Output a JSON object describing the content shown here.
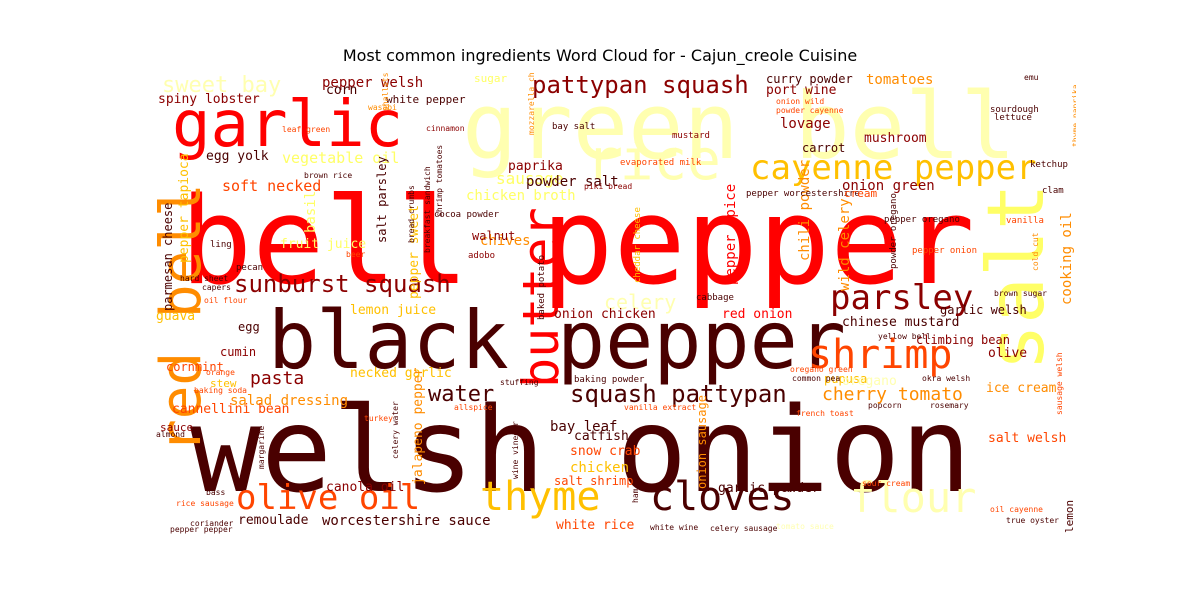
{
  "title": "Most common ingredients Word Cloud for - Cajun_creole Cuisine",
  "palette": {
    "dark": "#4a0000",
    "deep_red": "#8b0000",
    "red": "#ff0000",
    "orange_red": "#ff4500",
    "orange": "#ff8c00",
    "gold": "#ffc000",
    "yellow": "#ffff66",
    "pale_yellow": "#ffffb0",
    "background": "#ffffff"
  },
  "words": [
    {
      "text": "welsh onion"
    },
    {
      "text": "bell pepper"
    },
    {
      "text": "black pepper"
    },
    {
      "text": "green bell"
    },
    {
      "text": "garlic"
    },
    {
      "text": "salt"
    },
    {
      "text": "red bell"
    },
    {
      "text": "butter"
    },
    {
      "text": "rice"
    },
    {
      "text": "cayenne pepper"
    },
    {
      "text": "shrimp"
    },
    {
      "text": "parsley"
    },
    {
      "text": "thyme"
    },
    {
      "text": "cloves"
    },
    {
      "text": "olive oil"
    },
    {
      "text": "flour"
    },
    {
      "text": "sunburst squash"
    },
    {
      "text": "squash pattypan"
    },
    {
      "text": "pattypan squash"
    },
    {
      "text": "sweet bay"
    },
    {
      "text": "pasta"
    },
    {
      "text": "water"
    },
    {
      "text": "cherry tomato"
    },
    {
      "text": "celery"
    },
    {
      "text": "sausage"
    },
    {
      "text": "soft necked"
    },
    {
      "text": "vegetable oil"
    },
    {
      "text": "chicken broth"
    },
    {
      "text": "pepper welsh"
    },
    {
      "text": "corn"
    },
    {
      "text": "spiny lobster"
    },
    {
      "text": "white pepper"
    },
    {
      "text": "egg yolk"
    },
    {
      "text": "paprika"
    },
    {
      "text": "powder salt"
    },
    {
      "text": "onion green"
    },
    {
      "text": "curry powder"
    },
    {
      "text": "port wine"
    },
    {
      "text": "lovage"
    },
    {
      "text": "carrot"
    },
    {
      "text": "mushroom"
    },
    {
      "text": "tomatoes"
    },
    {
      "text": "sugar"
    },
    {
      "text": "fruit juice"
    },
    {
      "text": "basil"
    },
    {
      "text": "salt parsley"
    },
    {
      "text": "chives"
    },
    {
      "text": "walnut"
    },
    {
      "text": "pepper spice"
    },
    {
      "text": "chili powder"
    },
    {
      "text": "wild celery"
    },
    {
      "text": "cooking oil"
    },
    {
      "text": "garlic welsh"
    },
    {
      "text": "lemon juice"
    },
    {
      "text": "onion chicken"
    },
    {
      "text": "red onion"
    },
    {
      "text": "chinese mustard"
    },
    {
      "text": "climbing bean"
    },
    {
      "text": "olive"
    },
    {
      "text": "pupusa"
    },
    {
      "text": "oregano"
    },
    {
      "text": "ice cream"
    },
    {
      "text": "guava"
    },
    {
      "text": "egg"
    },
    {
      "text": "cumin"
    },
    {
      "text": "cornmint"
    },
    {
      "text": "stew"
    },
    {
      "text": "necked garlic"
    },
    {
      "text": "salad dressing"
    },
    {
      "text": "cannellini bean"
    },
    {
      "text": "bay leaf"
    },
    {
      "text": "catfish"
    },
    {
      "text": "snow crab"
    },
    {
      "text": "chicken"
    },
    {
      "text": "salt shrimp"
    },
    {
      "text": "canola oil"
    },
    {
      "text": "garlic powder"
    },
    {
      "text": "remoulade"
    },
    {
      "text": "worcestershire sauce"
    },
    {
      "text": "white rice"
    },
    {
      "text": "salt welsh"
    },
    {
      "text": "lemon"
    },
    {
      "text": "parmesan cheese"
    },
    {
      "text": "pepper tapioca"
    },
    {
      "text": "pepper sweet"
    },
    {
      "text": "cheddar cheese"
    },
    {
      "text": "jalapeno pepper"
    },
    {
      "text": "onion sausage"
    },
    {
      "text": "sauce"
    },
    {
      "text": "ketchup"
    },
    {
      "text": "clam"
    },
    {
      "text": "vanilla"
    },
    {
      "text": "sourdough"
    },
    {
      "text": "lettuce"
    },
    {
      "text": "emu"
    },
    {
      "text": "thyme paprika"
    },
    {
      "text": "cinnamon"
    },
    {
      "text": "leaf green"
    },
    {
      "text": "wasabi"
    },
    {
      "text": "shallots"
    },
    {
      "text": "bay salt"
    },
    {
      "text": "mustard"
    },
    {
      "text": "mozzarella cheese"
    },
    {
      "text": "evaporated milk"
    },
    {
      "text": "pepper worcestershire"
    },
    {
      "text": "cream"
    },
    {
      "text": "brown rice"
    },
    {
      "text": "bread crumbs"
    },
    {
      "text": "breakfast sandwich"
    },
    {
      "text": "shrimp tomatoes"
    },
    {
      "text": "piki bread"
    },
    {
      "text": "cocoa powder"
    },
    {
      "text": "adobo"
    },
    {
      "text": "baked potato"
    },
    {
      "text": "cabbage"
    },
    {
      "text": "pepper oregano"
    },
    {
      "text": "powder oregano"
    },
    {
      "text": "pepper onion"
    },
    {
      "text": "brown sugar"
    },
    {
      "text": "cold cut"
    },
    {
      "text": "pecan"
    },
    {
      "text": "hard sheet"
    },
    {
      "text": "capers"
    },
    {
      "text": "oil flour"
    },
    {
      "text": "ling"
    },
    {
      "text": "beer"
    },
    {
      "text": "yellow bell"
    },
    {
      "text": "oregano green"
    },
    {
      "text": "common pea"
    },
    {
      "text": "baking powder"
    },
    {
      "text": "okra welsh"
    },
    {
      "text": "stuffing"
    },
    {
      "text": "allspice"
    },
    {
      "text": "vanilla extract"
    },
    {
      "text": "french toast"
    },
    {
      "text": "popcorn"
    },
    {
      "text": "rosemary"
    },
    {
      "text": "turkey"
    },
    {
      "text": "almond"
    },
    {
      "text": "celery water"
    },
    {
      "text": "margarine"
    },
    {
      "text": "wine vinegar"
    },
    {
      "text": "ham"
    },
    {
      "text": "sour cream"
    },
    {
      "text": "bass"
    },
    {
      "text": "rice sausage"
    },
    {
      "text": "coriander"
    },
    {
      "text": "pepper pepper"
    },
    {
      "text": "white wine"
    },
    {
      "text": "celery sausage"
    },
    {
      "text": "oil cayenne"
    },
    {
      "text": "true oyster"
    },
    {
      "text": "orange"
    },
    {
      "text": "baking soda"
    },
    {
      "text": "onion wild"
    },
    {
      "text": "powder cayenne"
    },
    {
      "text": "sausage welsh"
    },
    {
      "text": "tomato sauce"
    }
  ]
}
